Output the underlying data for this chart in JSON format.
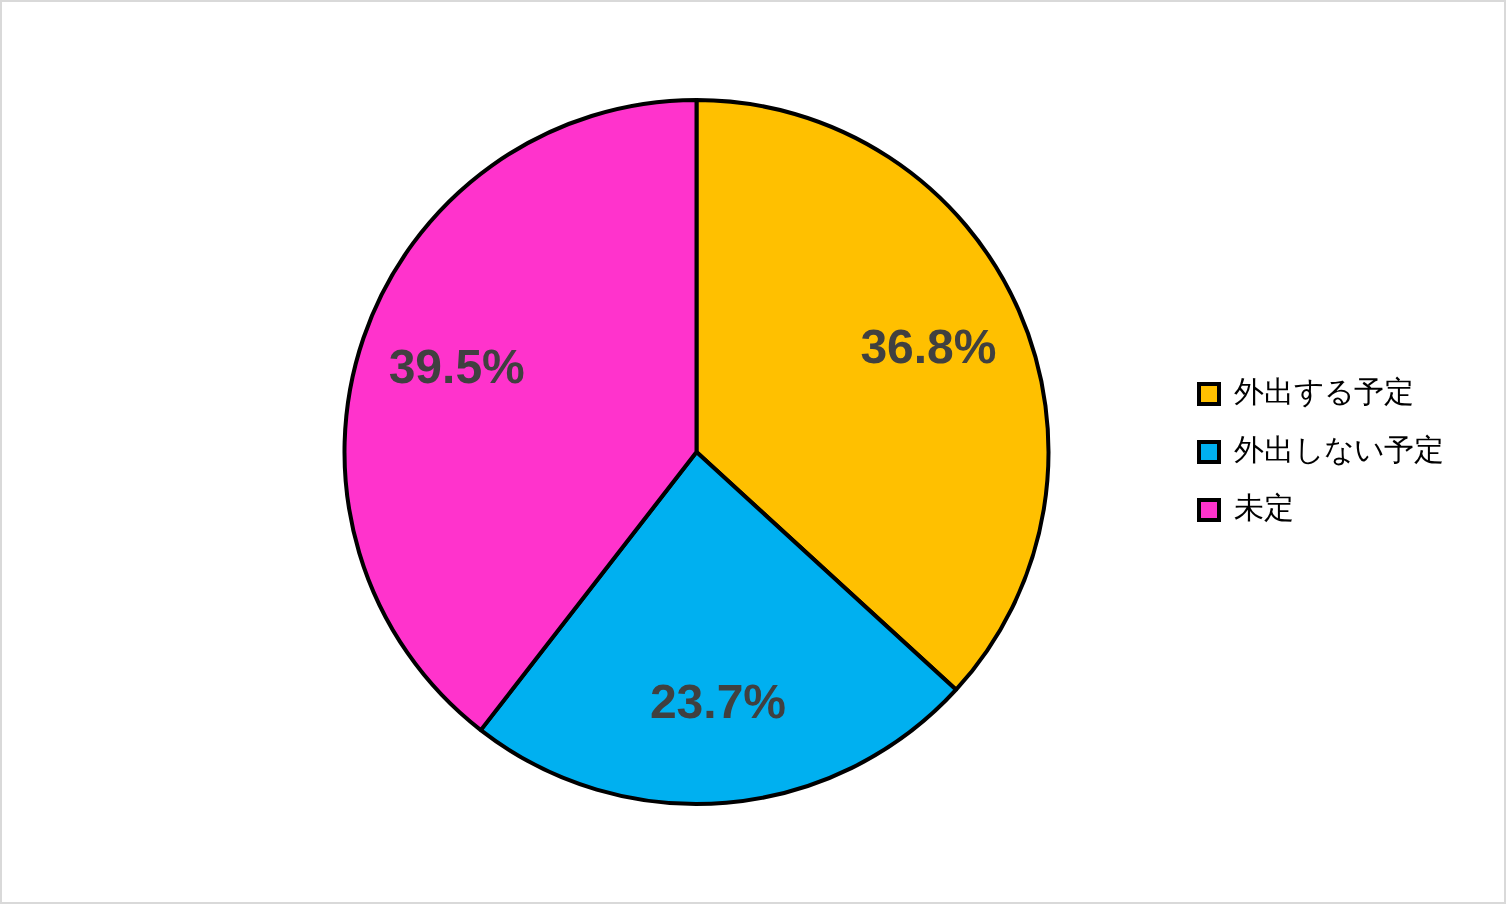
{
  "chart_data": {
    "type": "pie",
    "categories": [
      "外出する予定",
      "外出しない予定",
      "未定"
    ],
    "values": [
      36.8,
      23.7,
      39.5
    ],
    "colors": [
      "#ffc000",
      "#00b0f0",
      "#ff33cc"
    ],
    "value_labels": [
      "36.8%",
      "23.7%",
      "39.5%"
    ],
    "legend": "right"
  }
}
